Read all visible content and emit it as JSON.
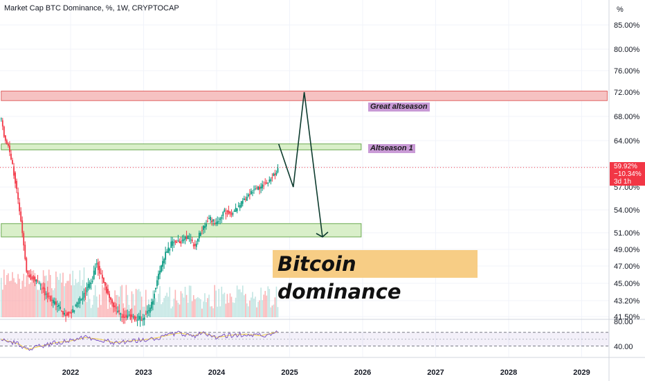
{
  "header": {
    "title": "Market Cap BTC Dominance, %, 1W, CRYPTOCAP",
    "unit": "%"
  },
  "annotations": {
    "great_altseason": "Great altseason",
    "altseason_1": "Altseason 1",
    "bitcoin_dominance": "Bitcoin dominance"
  },
  "price_tag": {
    "value": "59.92%",
    "change": "−10.34%",
    "countdown": "3d 1h"
  },
  "colors": {
    "up": "#089981",
    "down": "#f23645",
    "red_zone": "#f6c2c2",
    "green_zone": "#d9efc9",
    "rsi_line": "#7e57c2",
    "rsi_ma": "#f5d142",
    "arrow": "#0d3b2e"
  },
  "chart_data": {
    "type": "line",
    "title": "Market Cap BTC Dominance, %, 1W, CRYPTOCAP",
    "y_axis_ticks": [
      "85.00%",
      "80.00%",
      "76.00%",
      "72.00%",
      "68.00%",
      "64.00%",
      "60.00%",
      "57.00%",
      "54.00%",
      "51.00%",
      "49.00%",
      "47.00%",
      "45.00%",
      "43.20%",
      "41.50%"
    ],
    "x_axis_ticks": [
      "2022",
      "2023",
      "2024",
      "2025",
      "2026",
      "2027",
      "2028",
      "2029"
    ],
    "rsi_ticks": [
      "80.00",
      "40.00"
    ],
    "x_range": [
      2021.05,
      2029.35
    ],
    "series": [
      {
        "x": [
          2021.05,
          2021.1,
          2021.15,
          2021.2,
          2021.3,
          2021.4,
          2021.5,
          2021.6,
          2021.7,
          2021.8,
          2021.9,
          2022.0,
          2022.1,
          2022.2,
          2022.3,
          2022.35,
          2022.4,
          2022.5,
          2022.6,
          2022.7,
          2022.8,
          2022.9,
          2023.0,
          2023.1,
          2023.2,
          2023.3,
          2023.4,
          2023.5,
          2023.6,
          2023.7,
          2023.8,
          2023.9,
          2024.0,
          2024.1,
          2024.2,
          2024.3,
          2024.4,
          2024.5,
          2024.6,
          2024.7,
          2024.8,
          2024.85
        ],
        "y": [
          67.5,
          64.0,
          63.0,
          60.5,
          54.0,
          46.0,
          45.5,
          44.5,
          43.5,
          42.8,
          41.9,
          41.7,
          43.0,
          44.0,
          45.5,
          47.5,
          46.2,
          44.0,
          42.5,
          41.5,
          41.5,
          41.3,
          41.4,
          42.5,
          46.0,
          48.5,
          50.0,
          49.8,
          50.5,
          49.5,
          51.5,
          53.0,
          52.0,
          53.8,
          53.5,
          54.5,
          55.5,
          56.5,
          57.0,
          57.8,
          59.0,
          59.92
        ]
      }
    ],
    "projection": {
      "x": [
        2024.85,
        2025.05,
        2025.2,
        2025.45
      ],
      "y": [
        63.5,
        57.0,
        72.0,
        50.5
      ]
    },
    "zones": [
      {
        "label": "Great altseason",
        "y": [
          70.6,
          72.2
        ],
        "x": [
          2021.05,
          2029.35
        ]
      },
      {
        "label": "Altseason 1",
        "y": [
          62.6,
          63.5
        ],
        "x": [
          2021.05,
          2025.98
        ]
      },
      {
        "label": "",
        "y": [
          50.5,
          52.2
        ],
        "x": [
          2021.05,
          2025.98
        ]
      }
    ],
    "current_value": 59.92,
    "rsi": {
      "ticks": [
        80,
        40
      ],
      "levels": [
        70,
        30
      ],
      "x": [
        2021.05,
        2021.3,
        2021.4,
        2021.6,
        2021.8,
        2022.0,
        2022.2,
        2022.4,
        2022.6,
        2022.8,
        2023.0,
        2023.2,
        2023.4,
        2023.5,
        2023.7,
        2023.8,
        2024.0,
        2024.2,
        2024.4,
        2024.6,
        2024.85
      ],
      "y": [
        50,
        35,
        20,
        30,
        40,
        45,
        55,
        50,
        40,
        45,
        48,
        55,
        65,
        68,
        60,
        70,
        55,
        62,
        65,
        60,
        72
      ]
    },
    "grid": true,
    "legend": "none"
  }
}
